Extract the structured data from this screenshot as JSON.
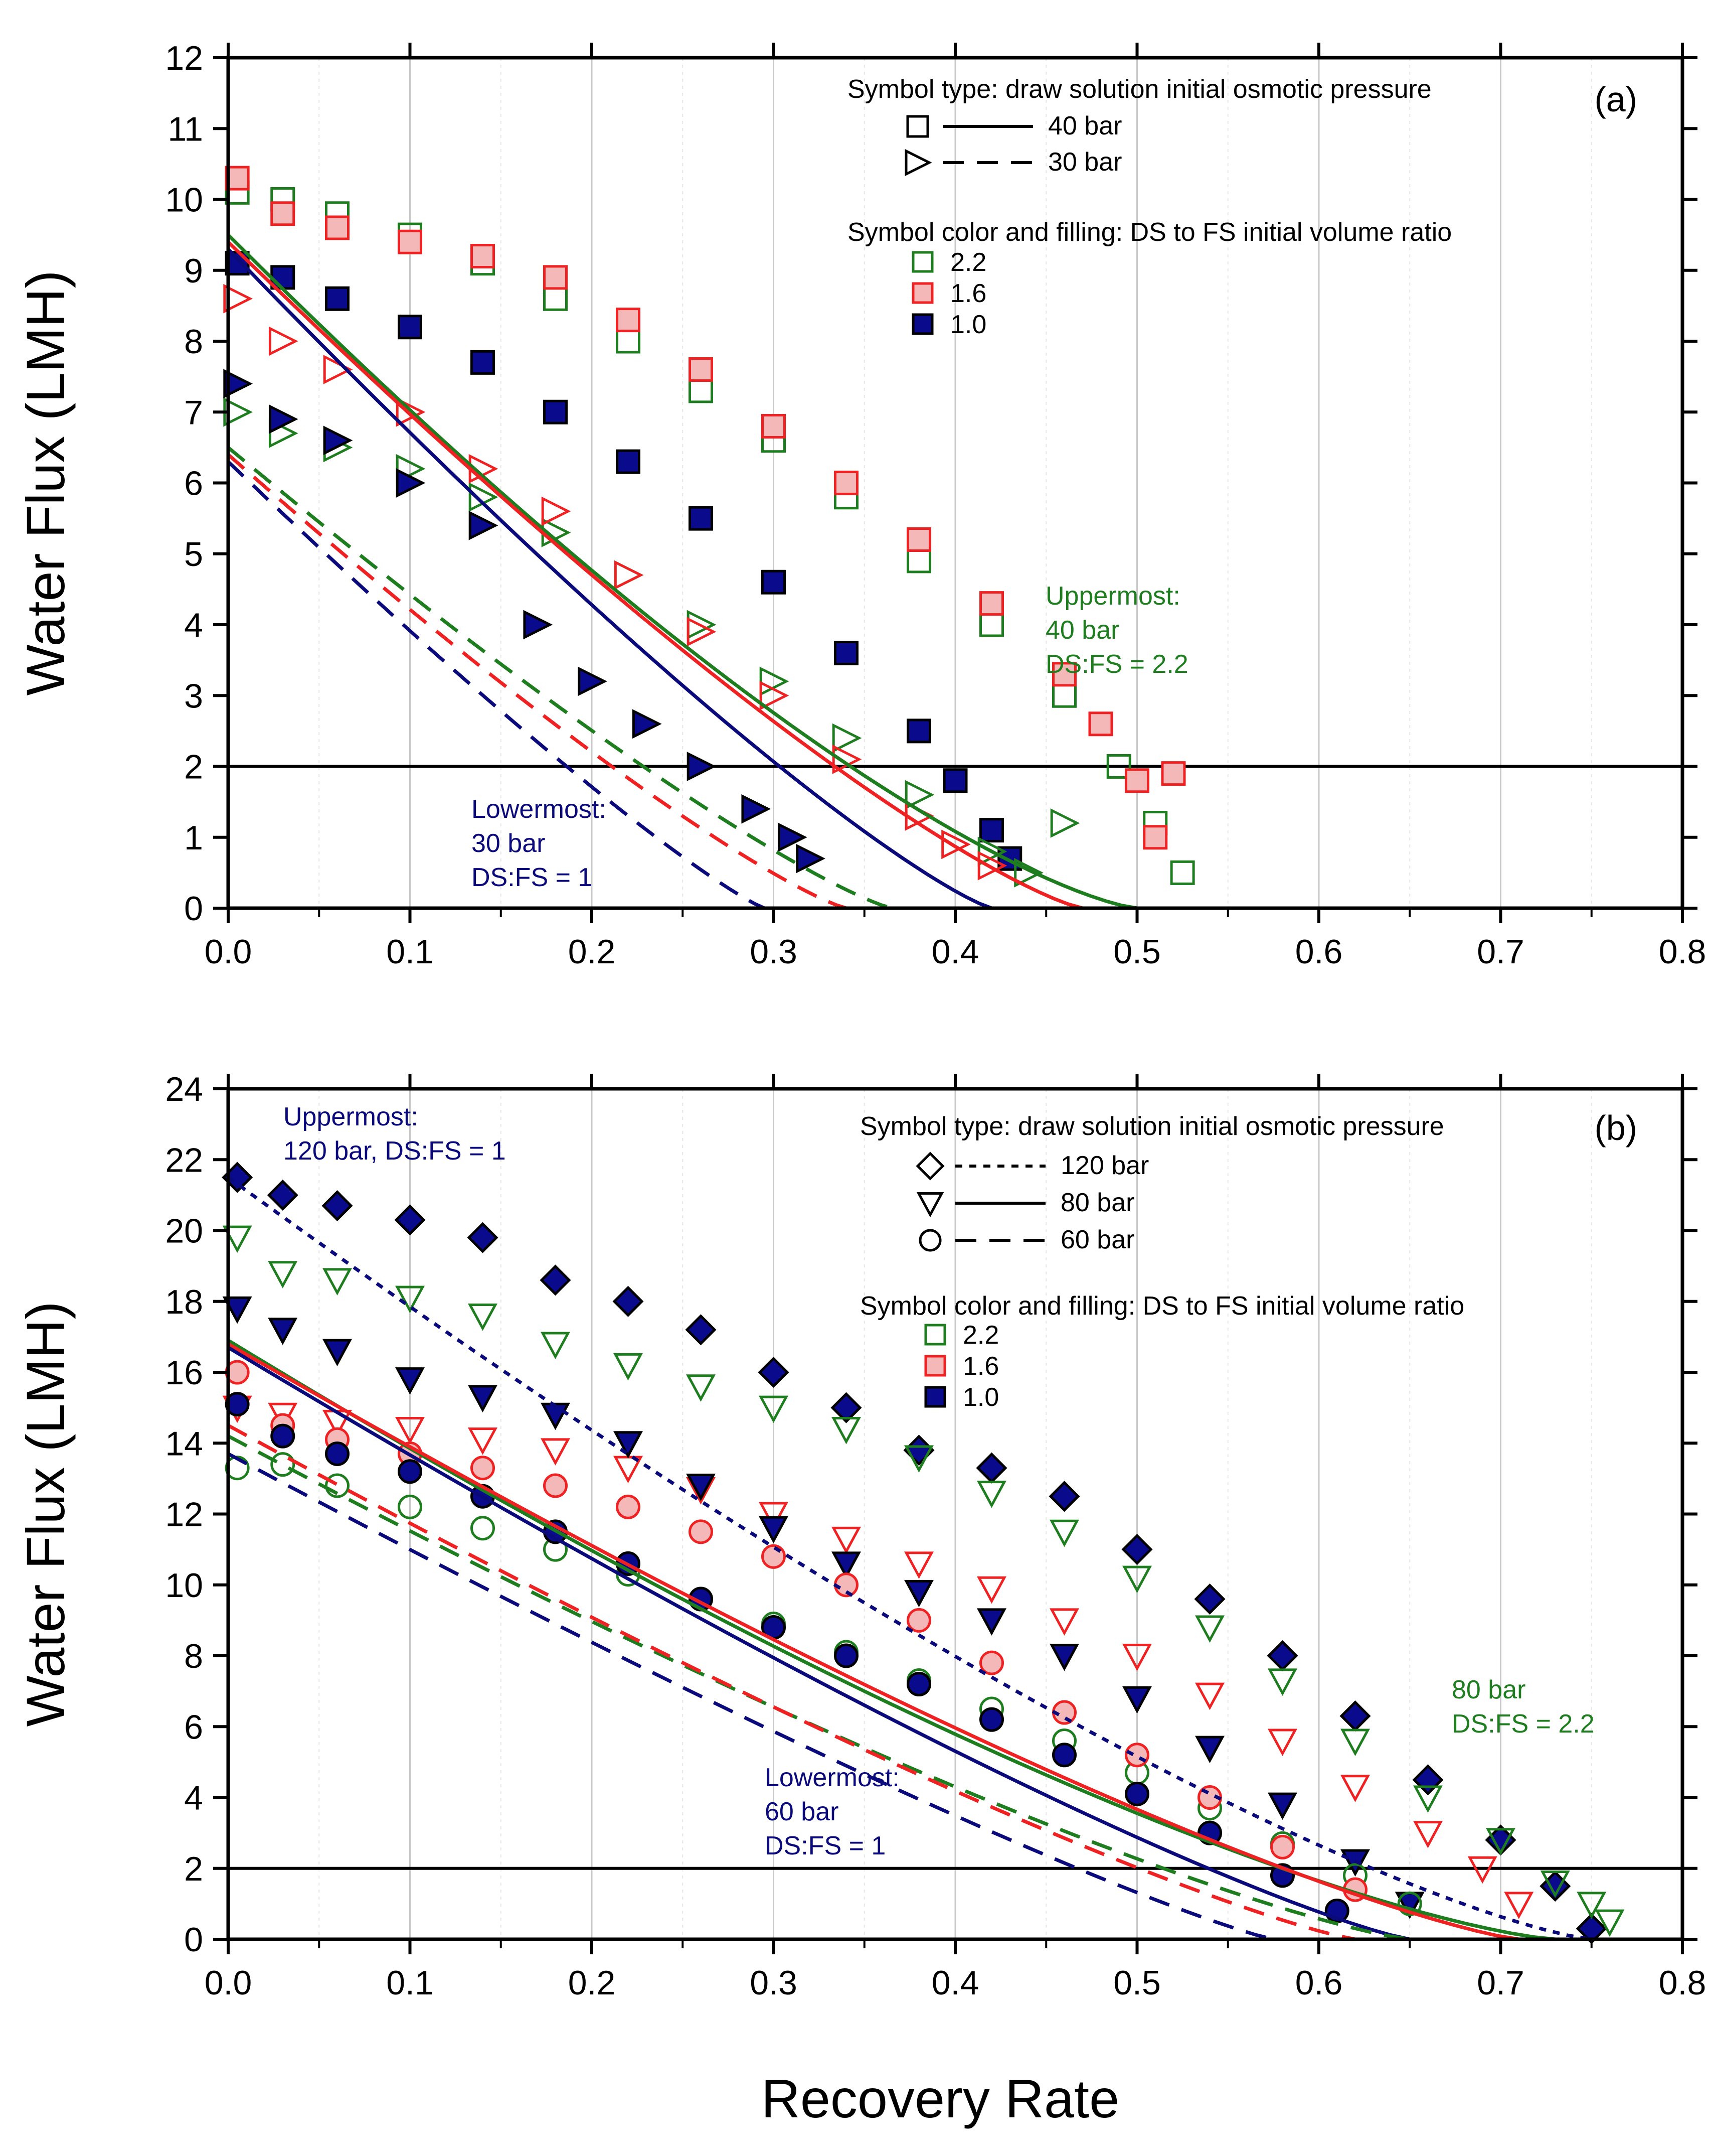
{
  "colors": {
    "green": "#1e7d1e",
    "red": "#ee2222",
    "pink_fill": "#f5b8b8",
    "blue": "#0a0a7a",
    "blue_fill": "#0a0a8c"
  },
  "figure": {
    "xlabel": "Recovery Rate"
  },
  "chart_data": [
    {
      "type": "scatter",
      "panel_label": "(a)",
      "xlabel": "Recovery Rate",
      "ylabel": "Water Flux  (LMH)",
      "xlim": [
        0.0,
        0.8
      ],
      "ylim": [
        0,
        12
      ],
      "xticks": [
        "0.0",
        "0.1",
        "0.2",
        "0.3",
        "0.4",
        "0.5",
        "0.6",
        "0.7",
        "0.8"
      ],
      "yticks": [
        "0",
        "1",
        "2",
        "3",
        "4",
        "5",
        "6",
        "7",
        "8",
        "9",
        "10",
        "11",
        "12"
      ],
      "reference_line_y": 2,
      "grid": "vertical",
      "legend_type_title": "Symbol type: draw solution initial osmotic pressure",
      "legend_types": [
        {
          "symbol": "square",
          "line": "solid",
          "label": "40 bar"
        },
        {
          "symbol": "triangle-right",
          "line": "dashed",
          "label": "30 bar"
        }
      ],
      "legend_color_title": "Symbol color and filling: DS to FS initial volume ratio",
      "legend_colors": [
        {
          "color": "green",
          "filled": false,
          "label": "2.2"
        },
        {
          "color": "red",
          "filled": true,
          "label": "1.6"
        },
        {
          "color": "blue",
          "filled": true,
          "label": "1.0"
        }
      ],
      "annotations": [
        {
          "color": "green",
          "lines": [
            "Uppermost:",
            "40 bar",
            "DS:FS = 2.2"
          ]
        },
        {
          "color": "blue",
          "lines": [
            "Lowermost:",
            "30 bar",
            "DS:FS = 1"
          ]
        }
      ],
      "fits": [
        {
          "name": "40 bar, DS:FS 2.2",
          "color": "green",
          "dash": "solid",
          "y0": 9.5,
          "xz": 0.5,
          "n": 1.35
        },
        {
          "name": "40 bar, DS:FS 1.6",
          "color": "red",
          "dash": "solid",
          "y0": 9.4,
          "xz": 0.47,
          "n": 1.25
        },
        {
          "name": "40 bar, DS:FS 1.0",
          "color": "blue",
          "dash": "solid",
          "y0": 9.3,
          "xz": 0.42,
          "n": 1.2
        },
        {
          "name": "30 bar, DS:FS 2.2",
          "color": "green",
          "dash": "dashed",
          "y0": 6.5,
          "xz": 0.365,
          "n": 1.2
        },
        {
          "name": "30 bar, DS:FS 1.6",
          "color": "red",
          "dash": "dashed",
          "y0": 6.4,
          "xz": 0.34,
          "n": 1.2
        },
        {
          "name": "30 bar, DS:FS 1.0",
          "color": "blue",
          "dash": "dashed",
          "y0": 6.3,
          "xz": 0.295,
          "n": 1.15
        }
      ],
      "series": [
        {
          "name": "40 bar, DS:FS 2.2",
          "marker": "square",
          "color": "green",
          "filled": false,
          "x": [
            0.005,
            0.03,
            0.06,
            0.1,
            0.14,
            0.18,
            0.22,
            0.26,
            0.3,
            0.34,
            0.38,
            0.42,
            0.46,
            0.49,
            0.51,
            0.525
          ],
          "y": [
            10.1,
            10.0,
            9.8,
            9.5,
            9.1,
            8.6,
            8.0,
            7.3,
            6.6,
            5.8,
            4.9,
            4.0,
            3.0,
            2.0,
            1.2,
            0.5
          ]
        },
        {
          "name": "40 bar, DS:FS 1.6",
          "marker": "square",
          "color": "red",
          "filled": true,
          "x": [
            0.005,
            0.03,
            0.06,
            0.1,
            0.14,
            0.18,
            0.22,
            0.26,
            0.3,
            0.34,
            0.38,
            0.42,
            0.46,
            0.48,
            0.5,
            0.51,
            0.52
          ],
          "y": [
            10.3,
            9.8,
            9.6,
            9.4,
            9.2,
            8.9,
            8.3,
            7.6,
            6.8,
            6.0,
            5.2,
            4.3,
            3.3,
            2.6,
            1.8,
            1.0,
            1.9
          ]
        },
        {
          "name": "40 bar, DS:FS 1.0",
          "marker": "square",
          "color": "blue",
          "filled": true,
          "x": [
            0.005,
            0.03,
            0.06,
            0.1,
            0.14,
            0.18,
            0.22,
            0.26,
            0.3,
            0.34,
            0.38,
            0.4,
            0.42,
            0.43
          ],
          "y": [
            9.1,
            8.9,
            8.6,
            8.2,
            7.7,
            7.0,
            6.3,
            5.5,
            4.6,
            3.6,
            2.5,
            1.8,
            1.1,
            0.7
          ]
        },
        {
          "name": "30 bar, DS:FS 2.2",
          "marker": "triangle-right",
          "color": "green",
          "filled": false,
          "x": [
            0.005,
            0.03,
            0.06,
            0.1,
            0.14,
            0.18,
            0.22,
            0.26,
            0.3,
            0.34,
            0.38,
            0.42,
            0.44,
            0.46
          ],
          "y": [
            7.0,
            6.7,
            6.5,
            6.2,
            5.8,
            5.3,
            4.7,
            4.0,
            3.2,
            2.4,
            1.6,
            0.8,
            0.5,
            1.2
          ]
        },
        {
          "name": "30 bar, DS:FS 1.6",
          "marker": "triangle-right",
          "color": "red",
          "filled": false,
          "x": [
            0.005,
            0.03,
            0.06,
            0.1,
            0.14,
            0.18,
            0.22,
            0.26,
            0.3,
            0.34,
            0.38,
            0.4,
            0.42
          ],
          "y": [
            8.6,
            8.0,
            7.6,
            7.0,
            6.2,
            5.6,
            4.7,
            3.9,
            3.0,
            2.1,
            1.3,
            0.9,
            0.6
          ]
        },
        {
          "name": "30 bar, DS:FS 1.0",
          "marker": "triangle-right",
          "color": "blue",
          "filled": true,
          "x": [
            0.005,
            0.03,
            0.06,
            0.1,
            0.14,
            0.17,
            0.2,
            0.23,
            0.26,
            0.29,
            0.31,
            0.32
          ],
          "y": [
            7.4,
            6.9,
            6.6,
            6.0,
            5.4,
            4.0,
            3.2,
            2.6,
            2.0,
            1.4,
            1.0,
            0.7
          ]
        }
      ]
    },
    {
      "type": "scatter",
      "panel_label": "(b)",
      "xlabel": "Recovery Rate",
      "ylabel": "Water Flux  (LMH)",
      "xlim": [
        0.0,
        0.8
      ],
      "ylim": [
        0,
        24
      ],
      "xticks": [
        "0.0",
        "0.1",
        "0.2",
        "0.3",
        "0.4",
        "0.5",
        "0.6",
        "0.7",
        "0.8"
      ],
      "yticks": [
        "0",
        "2",
        "4",
        "6",
        "8",
        "10",
        "12",
        "14",
        "16",
        "18",
        "20",
        "22",
        "24"
      ],
      "reference_line_y": 2,
      "grid": "vertical",
      "legend_type_title": "Symbol type: draw solution initial osmotic pressure",
      "legend_types": [
        {
          "symbol": "diamond",
          "line": "dotted",
          "label": "120 bar"
        },
        {
          "symbol": "triangle-down",
          "line": "solid",
          "label": "80 bar"
        },
        {
          "symbol": "circle",
          "line": "dashed",
          "label": "60 bar"
        }
      ],
      "legend_color_title": "Symbol color and filling: DS to FS initial volume ratio",
      "legend_colors": [
        {
          "color": "green",
          "filled": false,
          "label": "2.2"
        },
        {
          "color": "red",
          "filled": true,
          "label": "1.6"
        },
        {
          "color": "blue",
          "filled": true,
          "label": "1.0"
        }
      ],
      "annotations": [
        {
          "color": "blue",
          "lines": [
            "Uppermost:",
            "120 bar, DS:FS = 1"
          ]
        },
        {
          "color": "green",
          "lines": [
            "80 bar",
            "DS:FS = 2.2"
          ]
        },
        {
          "color": "blue",
          "lines": [
            "Lowermost:",
            "60 bar",
            "DS:FS = 1"
          ]
        }
      ],
      "fits": [
        {
          "name": "120 bar, DS:FS 1.0",
          "color": "blue",
          "dash": "dotted",
          "y0": 21.5,
          "xz": 0.75,
          "n": 1.3
        },
        {
          "name": "80 bar, DS:FS 2.2",
          "color": "green",
          "dash": "solid",
          "y0": 16.9,
          "xz": 0.73,
          "n": 1.35
        },
        {
          "name": "80 bar, DS:FS 1.6",
          "color": "red",
          "dash": "solid",
          "y0": 16.8,
          "xz": 0.71,
          "n": 1.25
        },
        {
          "name": "80 bar, DS:FS 1.0",
          "color": "blue",
          "dash": "solid",
          "y0": 16.7,
          "xz": 0.65,
          "n": 1.2
        },
        {
          "name": "60 bar, DS:FS 2.2",
          "color": "green",
          "dash": "dashed",
          "y0": 14.2,
          "xz": 0.65,
          "n": 1.25
        },
        {
          "name": "60 bar, DS:FS 1.6",
          "color": "red",
          "dash": "dashed",
          "y0": 14.5,
          "xz": 0.62,
          "n": 1.2
        },
        {
          "name": "60 bar, DS:FS 1.0",
          "color": "blue",
          "dash": "dashed",
          "y0": 13.7,
          "xz": 0.575,
          "n": 1.15
        }
      ],
      "series": [
        {
          "name": "120 bar, DS:FS 1.0",
          "marker": "diamond",
          "color": "blue",
          "filled": true,
          "x": [
            0.005,
            0.03,
            0.06,
            0.1,
            0.14,
            0.18,
            0.22,
            0.26,
            0.3,
            0.34,
            0.38,
            0.42,
            0.46,
            0.5,
            0.54,
            0.58,
            0.62,
            0.66,
            0.7,
            0.73,
            0.75
          ],
          "y": [
            21.5,
            21.0,
            20.7,
            20.3,
            19.8,
            18.6,
            18.0,
            17.2,
            16.0,
            15.0,
            13.8,
            13.3,
            12.5,
            11.0,
            9.6,
            8.0,
            6.3,
            4.5,
            2.8,
            1.5,
            0.3
          ]
        },
        {
          "name": "80 bar, DS:FS 2.2",
          "marker": "triangle-down",
          "color": "green",
          "filled": false,
          "x": [
            0.005,
            0.03,
            0.06,
            0.1,
            0.14,
            0.18,
            0.22,
            0.26,
            0.3,
            0.34,
            0.38,
            0.42,
            0.46,
            0.5,
            0.54,
            0.58,
            0.62,
            0.66,
            0.7,
            0.73,
            0.75,
            0.76
          ],
          "y": [
            19.8,
            18.8,
            18.6,
            18.1,
            17.6,
            16.8,
            16.2,
            15.6,
            15.0,
            14.4,
            13.6,
            12.6,
            11.5,
            10.2,
            8.8,
            7.3,
            5.6,
            4.0,
            2.8,
            1.6,
            1.0,
            0.5
          ]
        },
        {
          "name": "80 bar, DS:FS 1.6",
          "marker": "triangle-down",
          "color": "red",
          "filled": false,
          "x": [
            0.005,
            0.03,
            0.06,
            0.1,
            0.14,
            0.18,
            0.22,
            0.26,
            0.3,
            0.34,
            0.38,
            0.42,
            0.46,
            0.5,
            0.54,
            0.58,
            0.62,
            0.66,
            0.69,
            0.71
          ],
          "y": [
            15.0,
            14.8,
            14.6,
            14.4,
            14.1,
            13.8,
            13.3,
            12.7,
            12.0,
            11.3,
            10.6,
            9.9,
            9.0,
            8.0,
            6.9,
            5.6,
            4.3,
            3.0,
            2.0,
            1.0
          ]
        },
        {
          "name": "80 bar, DS:FS 1.0",
          "marker": "triangle-down",
          "color": "blue",
          "filled": true,
          "x": [
            0.005,
            0.03,
            0.06,
            0.1,
            0.14,
            0.18,
            0.22,
            0.26,
            0.3,
            0.34,
            0.38,
            0.42,
            0.46,
            0.5,
            0.54,
            0.58,
            0.62,
            0.65
          ],
          "y": [
            17.8,
            17.2,
            16.6,
            15.8,
            15.3,
            14.8,
            14.0,
            12.8,
            11.6,
            10.6,
            9.8,
            9.0,
            8.0,
            6.8,
            5.4,
            3.8,
            2.2,
            1.0
          ]
        },
        {
          "name": "60 bar, DS:FS 2.2",
          "marker": "circle",
          "color": "green",
          "filled": false,
          "x": [
            0.005,
            0.03,
            0.06,
            0.1,
            0.14,
            0.18,
            0.22,
            0.26,
            0.3,
            0.34,
            0.38,
            0.42,
            0.46,
            0.5,
            0.54,
            0.58,
            0.62,
            0.65
          ],
          "y": [
            13.3,
            13.4,
            12.8,
            12.2,
            11.6,
            11.0,
            10.3,
            9.6,
            8.9,
            8.1,
            7.3,
            6.5,
            5.6,
            4.7,
            3.7,
            2.7,
            1.8,
            1.0
          ]
        },
        {
          "name": "60 bar, DS:FS 1.6",
          "marker": "circle",
          "color": "red",
          "filled": true,
          "x": [
            0.005,
            0.03,
            0.06,
            0.1,
            0.14,
            0.18,
            0.22,
            0.26,
            0.3,
            0.34,
            0.38,
            0.42,
            0.46,
            0.5,
            0.54,
            0.58,
            0.62
          ],
          "y": [
            16.0,
            14.5,
            14.1,
            13.7,
            13.3,
            12.8,
            12.2,
            11.5,
            10.8,
            10.0,
            9.0,
            7.8,
            6.4,
            5.2,
            4.0,
            2.6,
            1.4
          ]
        },
        {
          "name": "60 bar, DS:FS 1.0",
          "marker": "circle",
          "color": "blue",
          "filled": true,
          "x": [
            0.005,
            0.03,
            0.06,
            0.1,
            0.14,
            0.18,
            0.22,
            0.26,
            0.3,
            0.34,
            0.38,
            0.42,
            0.46,
            0.5,
            0.54,
            0.58,
            0.61
          ],
          "y": [
            15.1,
            14.2,
            13.7,
            13.2,
            12.5,
            11.5,
            10.6,
            9.6,
            8.8,
            8.0,
            7.2,
            6.2,
            5.2,
            4.1,
            3.0,
            1.8,
            0.8
          ]
        }
      ]
    }
  ]
}
